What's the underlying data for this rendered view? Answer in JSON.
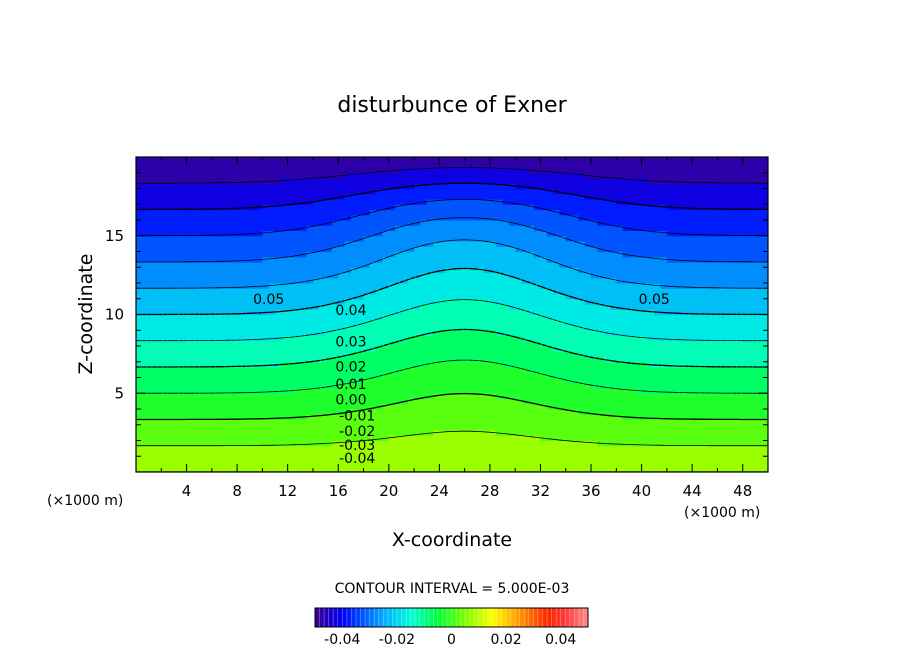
{
  "chart_data": {
    "type": "contour",
    "title": "disturbunce of Exner",
    "xlabel": "X-coordinate",
    "ylabel": "Z-coordinate",
    "x_unit_left": "(×1000 m)",
    "x_unit_right": "(×1000 m)",
    "xlim": [
      0,
      50
    ],
    "ylim": [
      0,
      20
    ],
    "xticks": [
      4,
      8,
      12,
      16,
      20,
      24,
      28,
      32,
      36,
      40,
      44,
      48
    ],
    "yticks": [
      5,
      10,
      15
    ],
    "contour_interval_text": "CONTOUR INTERVAL = 5.000E-03",
    "contour_interval": 0.005,
    "contour_labels": [
      {
        "text": "0.05",
        "x": 10.5,
        "y": 11.0
      },
      {
        "text": "0.05",
        "x": 41.0,
        "y": 11.0
      },
      {
        "text": "0.04",
        "x": 17.0,
        "y": 10.3
      },
      {
        "text": "0.03",
        "x": 17.0,
        "y": 8.3
      },
      {
        "text": "0.02",
        "x": 17.0,
        "y": 6.7
      },
      {
        "text": "0.01",
        "x": 17.0,
        "y": 5.6
      },
      {
        "text": "0.00",
        "x": 17.0,
        "y": 4.6
      },
      {
        "text": "-0.01",
        "x": 17.5,
        "y": 3.6
      },
      {
        "text": "-0.02",
        "x": 17.5,
        "y": 2.6
      },
      {
        "text": "-0.03",
        "x": 17.5,
        "y": 1.7
      },
      {
        "text": "-0.04",
        "x": 17.5,
        "y": 0.9
      }
    ],
    "colorbar": {
      "range": [
        -0.05,
        0.05
      ],
      "tick_labels": [
        "-0.04",
        "-0.02",
        "0",
        "0.02",
        "0.04"
      ],
      "tick_values": [
        -0.04,
        -0.02,
        0,
        0.02,
        0.04
      ]
    },
    "field": "pi'(x,z) ≈ 0.06·(1 - z/20) - 0.05 + 0.007·exp(-((x-26)/9)^2)·sin(πz/20) (approximate)",
    "colors": {
      "low": "#3b0090",
      "blue": "#0000ff",
      "cyan": "#00ffff",
      "green": "#00ff00",
      "yellow": "#ffff00",
      "orange": "#ff8000",
      "red": "#ff0000",
      "pink": "#ff8080"
    }
  }
}
